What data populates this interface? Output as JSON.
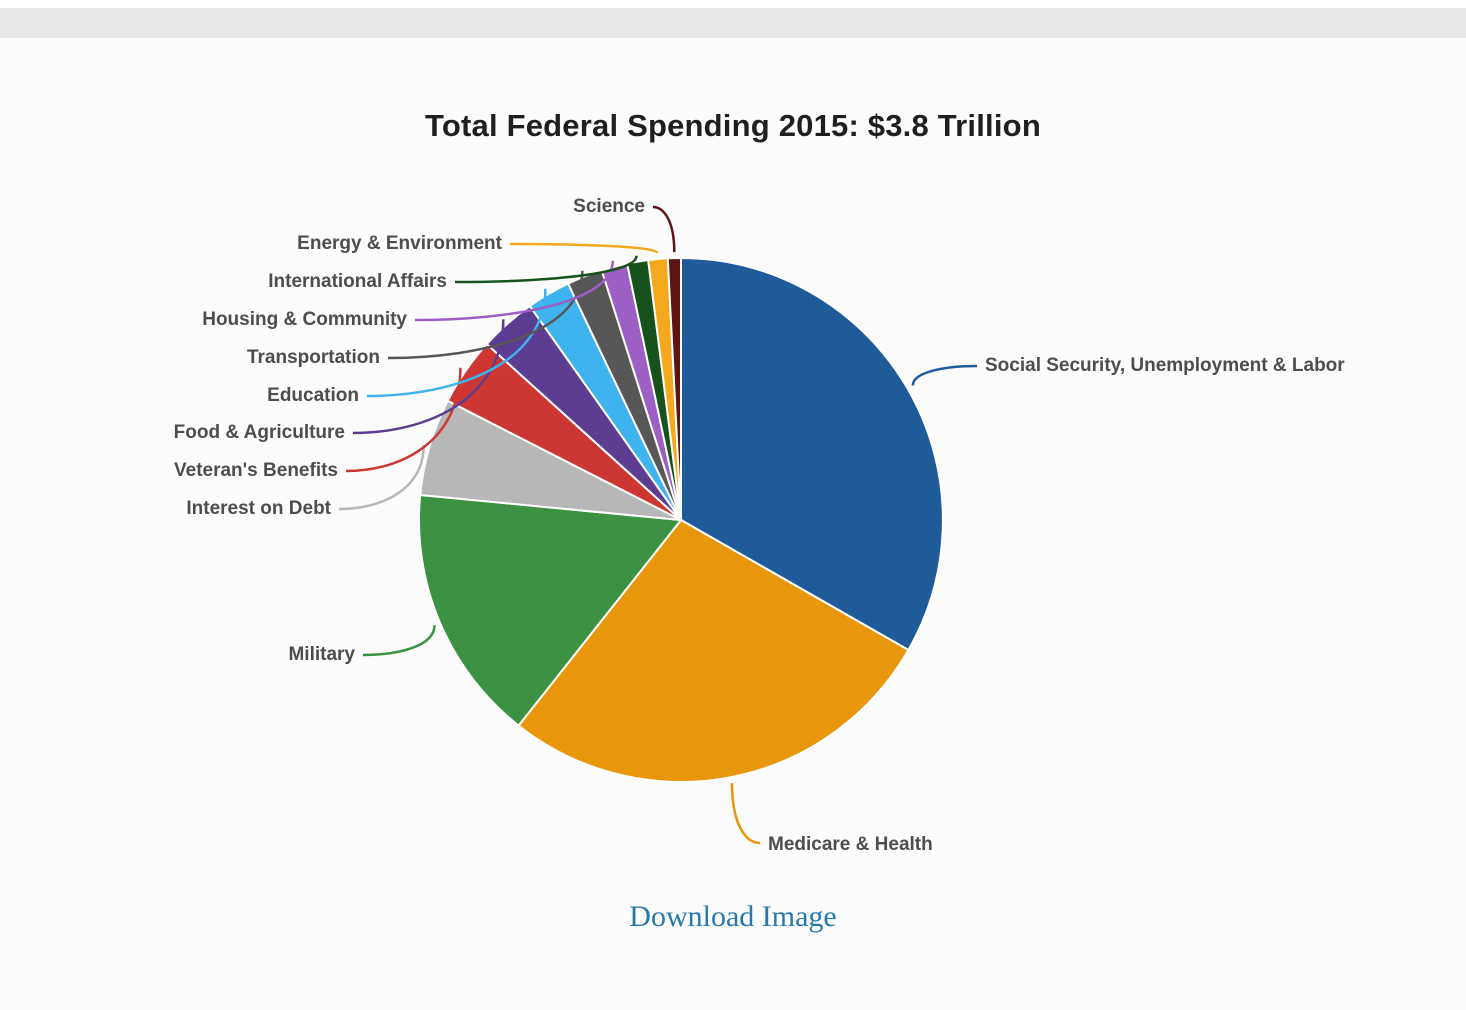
{
  "page": {
    "download_link": "Download Image"
  },
  "chart_data": {
    "type": "pie",
    "title": "Total Federal Spending 2015: $3.8 Trillion",
    "total_label": "$3.8 Trillion",
    "year": "2015",
    "values_unit": "percent of total (estimated from slice angles)",
    "start_angle": "12 o'clock, clockwise",
    "legend_position": "outside labels with leader lines",
    "slices": [
      {
        "label": "Social Security, Unemployment & Labor",
        "value": 33.3,
        "color": "#1f5b99"
      },
      {
        "label": "Medicare & Health",
        "value": 27.4,
        "color": "#e8960c"
      },
      {
        "label": "Military",
        "value": 15.9,
        "color": "#3d9142"
      },
      {
        "label": "Interest on Debt",
        "value": 6.0,
        "color": "#b7b7b7"
      },
      {
        "label": "Veteran's Benefits",
        "value": 4.2,
        "color": "#cc3733"
      },
      {
        "label": "Food & Agriculture",
        "value": 3.5,
        "color": "#5c3d91"
      },
      {
        "label": "Education",
        "value": 2.7,
        "color": "#3fb3ed"
      },
      {
        "label": "Transportation",
        "value": 2.2,
        "color": "#575757"
      },
      {
        "label": "Housing & Community",
        "value": 1.6,
        "color": "#9d5fc4"
      },
      {
        "label": "International Affairs",
        "value": 1.3,
        "color": "#17521d"
      },
      {
        "label": "Energy & Environment",
        "value": 1.2,
        "color": "#f4a81d"
      },
      {
        "label": "Science",
        "value": 0.8,
        "color": "#5e1412"
      }
    ]
  }
}
